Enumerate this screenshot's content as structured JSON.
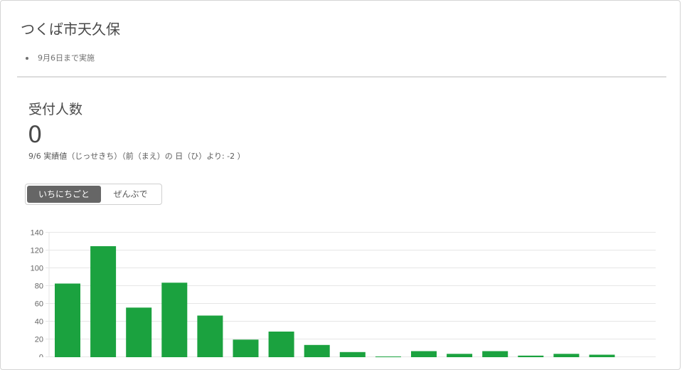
{
  "card": {
    "title": "つくば市天久保",
    "notes": [
      "9月6日まで実施"
    ]
  },
  "metric": {
    "title": "受付人数",
    "value": "0",
    "subtitle": "9/6 実績値（じっせきち）（前（まえ）の 日（ひ）より: -2 ）"
  },
  "toggle": {
    "options": [
      "いちにちごと",
      "ぜんぶで"
    ],
    "selected": "いちにちごと"
  },
  "colors": {
    "bar": "#1ba23f",
    "grid": "#e6e6e6",
    "axis_text": "#666666"
  },
  "chart_data": {
    "type": "bar",
    "title": "",
    "xlabel": "",
    "ylabel": "",
    "ylim": [
      0,
      140
    ],
    "yticks": [
      0,
      20,
      40,
      60,
      80,
      100,
      120,
      140
    ],
    "grid": true,
    "values": [
      82,
      124,
      55,
      83,
      46,
      19,
      28,
      13,
      5,
      0,
      6,
      3,
      6,
      1,
      3,
      2
    ]
  }
}
